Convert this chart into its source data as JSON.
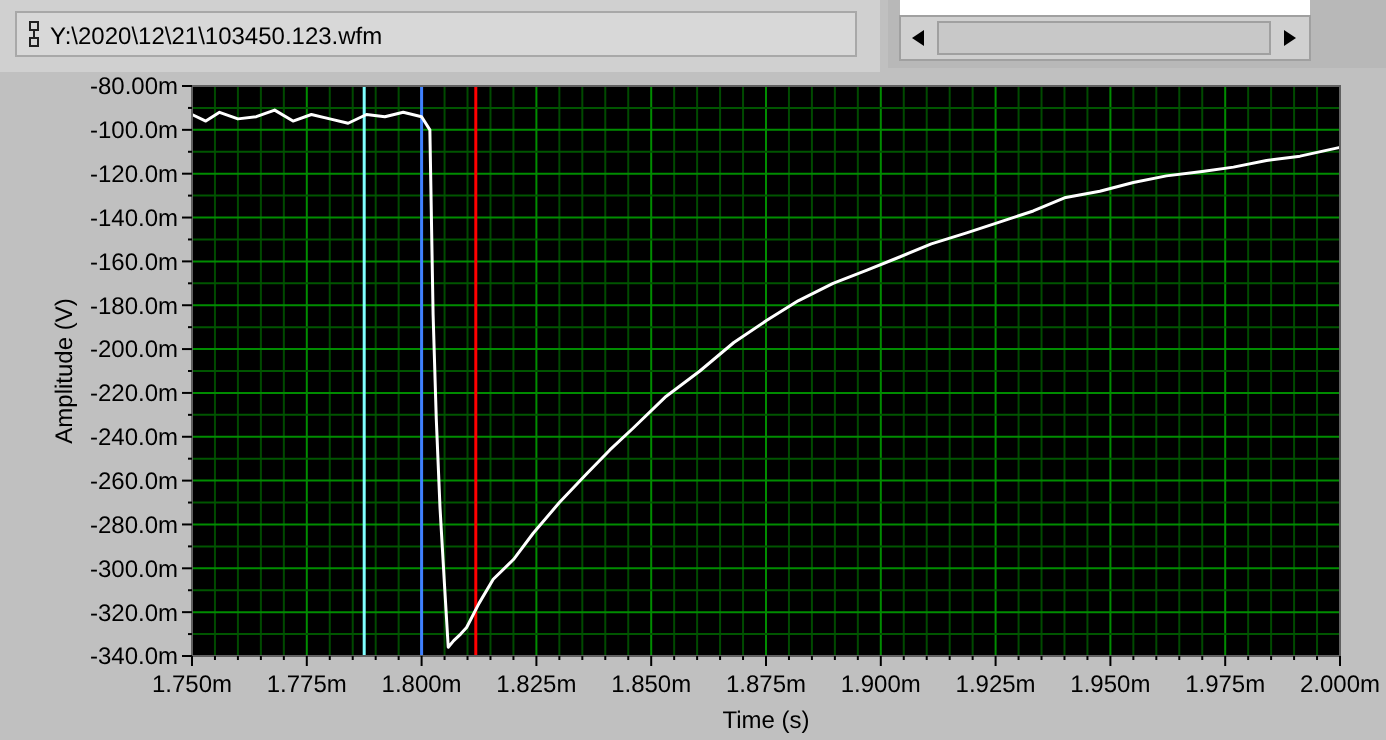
{
  "chart_data": {
    "type": "line",
    "xlabel": "Time (s)",
    "ylabel": "Amplitude (V)",
    "annotations": [
      "Y:\\2020\\12\\21\\103450.123.wfm"
    ],
    "xlim": [
      1.75,
      2.0
    ],
    "ylim": [
      -340,
      -80
    ],
    "xticks": [
      {
        "value": 1.75,
        "label": "1.750m"
      },
      {
        "value": 1.755,
        "label": null
      },
      {
        "value": 1.76,
        "label": null
      },
      {
        "value": 1.765,
        "label": null
      },
      {
        "value": 1.77,
        "label": null
      },
      {
        "value": 1.775,
        "label": "1.775m"
      },
      {
        "value": 1.78,
        "label": null
      },
      {
        "value": 1.785,
        "label": null
      },
      {
        "value": 1.79,
        "label": null
      },
      {
        "value": 1.795,
        "label": null
      },
      {
        "value": 1.8,
        "label": "1.800m"
      },
      {
        "value": 1.805,
        "label": null
      },
      {
        "value": 1.81,
        "label": null
      },
      {
        "value": 1.815,
        "label": null
      },
      {
        "value": 1.82,
        "label": null
      },
      {
        "value": 1.825,
        "label": "1.825m"
      },
      {
        "value": 1.83,
        "label": null
      },
      {
        "value": 1.835,
        "label": null
      },
      {
        "value": 1.84,
        "label": null
      },
      {
        "value": 1.845,
        "label": null
      },
      {
        "value": 1.85,
        "label": "1.850m"
      },
      {
        "value": 1.855,
        "label": null
      },
      {
        "value": 1.86,
        "label": null
      },
      {
        "value": 1.865,
        "label": null
      },
      {
        "value": 1.87,
        "label": null
      },
      {
        "value": 1.875,
        "label": "1.875m"
      },
      {
        "value": 1.88,
        "label": null
      },
      {
        "value": 1.885,
        "label": null
      },
      {
        "value": 1.89,
        "label": null
      },
      {
        "value": 1.895,
        "label": null
      },
      {
        "value": 1.9,
        "label": "1.900m"
      },
      {
        "value": 1.905,
        "label": null
      },
      {
        "value": 1.91,
        "label": null
      },
      {
        "value": 1.915,
        "label": null
      },
      {
        "value": 1.92,
        "label": null
      },
      {
        "value": 1.925,
        "label": "1.925m"
      },
      {
        "value": 1.93,
        "label": null
      },
      {
        "value": 1.935,
        "label": null
      },
      {
        "value": 1.94,
        "label": null
      },
      {
        "value": 1.945,
        "label": null
      },
      {
        "value": 1.95,
        "label": "1.950m"
      },
      {
        "value": 1.955,
        "label": null
      },
      {
        "value": 1.96,
        "label": null
      },
      {
        "value": 1.965,
        "label": null
      },
      {
        "value": 1.97,
        "label": null
      },
      {
        "value": 1.975,
        "label": "1.975m"
      },
      {
        "value": 1.98,
        "label": null
      },
      {
        "value": 1.985,
        "label": null
      },
      {
        "value": 1.99,
        "label": null
      },
      {
        "value": 1.995,
        "label": null
      },
      {
        "value": 2.0,
        "label": "2.000m"
      }
    ],
    "yticks": [
      {
        "value": -80,
        "label": "-80.00m"
      },
      {
        "value": -90,
        "label": null
      },
      {
        "value": -100,
        "label": "-100.0m"
      },
      {
        "value": -110,
        "label": null
      },
      {
        "value": -120,
        "label": "-120.0m"
      },
      {
        "value": -130,
        "label": null
      },
      {
        "value": -140,
        "label": "-140.0m"
      },
      {
        "value": -150,
        "label": null
      },
      {
        "value": -160,
        "label": "-160.0m"
      },
      {
        "value": -170,
        "label": null
      },
      {
        "value": -180,
        "label": "-180.0m"
      },
      {
        "value": -190,
        "label": null
      },
      {
        "value": -200,
        "label": "-200.0m"
      },
      {
        "value": -210,
        "label": null
      },
      {
        "value": -220,
        "label": "-220.0m"
      },
      {
        "value": -230,
        "label": null
      },
      {
        "value": -240,
        "label": "-240.0m"
      },
      {
        "value": -250,
        "label": null
      },
      {
        "value": -260,
        "label": "-260.0m"
      },
      {
        "value": -270,
        "label": null
      },
      {
        "value": -280,
        "label": "-280.0m"
      },
      {
        "value": -290,
        "label": null
      },
      {
        "value": -300,
        "label": "-300.0m"
      },
      {
        "value": -310,
        "label": null
      },
      {
        "value": -320,
        "label": "-320.0m"
      },
      {
        "value": -330,
        "label": null
      },
      {
        "value": -340,
        "label": "-340.0m"
      }
    ],
    "grid": true,
    "marker": "none",
    "line_style": "solid",
    "ref_lines": [
      {
        "axis": "x",
        "value": 1.7875,
        "color": "#80ffff"
      },
      {
        "axis": "x",
        "value": 1.8,
        "color": "#4080ff"
      },
      {
        "axis": "x",
        "value": 1.8118,
        "color": "#ff0000"
      }
    ],
    "series": [
      {
        "color": "#ffffff",
        "x": [
          1.75,
          1.753,
          1.756,
          1.76,
          1.764,
          1.768,
          1.772,
          1.776,
          1.78,
          1.784,
          1.788,
          1.792,
          1.796,
          1.8,
          1.8018,
          1.8025,
          1.8032,
          1.804,
          1.805,
          1.8058,
          1.807,
          1.8085,
          1.8098,
          1.8125,
          1.8156,
          1.82,
          1.8243,
          1.83,
          1.8359,
          1.841,
          1.8461,
          1.853,
          1.8606,
          1.868,
          1.8751,
          1.882,
          1.8896,
          1.897,
          1.9041,
          1.911,
          1.9187,
          1.926,
          1.9332,
          1.94,
          1.9477,
          1.955,
          1.9622,
          1.97,
          1.9768,
          1.984,
          1.9913,
          2.0
        ],
        "values": [
          -93,
          -96,
          -92,
          -95,
          -94,
          -91,
          -96,
          -93,
          -95,
          -97,
          -93,
          -94,
          -92,
          -94,
          -100,
          -184,
          -232,
          -272,
          -308,
          -336,
          -333,
          -330,
          -327,
          -316,
          -305,
          -296,
          -284,
          -270,
          -257,
          -246,
          -236,
          -222,
          -210,
          -197,
          -187,
          -178,
          -170,
          -164,
          -158,
          -152,
          -147,
          -142,
          -137,
          -131,
          -128,
          -124,
          -121,
          -119,
          -117,
          -114,
          -112,
          -108
        ]
      }
    ]
  }
}
